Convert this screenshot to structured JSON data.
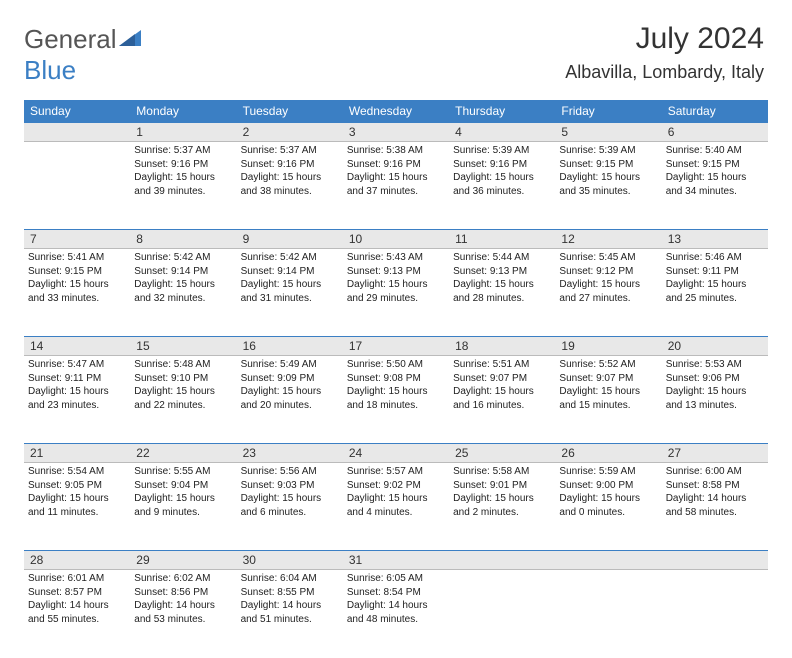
{
  "brand": {
    "part1": "General",
    "part2": "Blue"
  },
  "title": "July 2024",
  "subtitle": "Albavilla, Lombardy, Italy",
  "colors": {
    "header_bg": "#3b7fc4",
    "header_fg": "#ffffff",
    "daynum_bg": "#e8e8e8",
    "rule": "#3b7fc4",
    "text": "#222222"
  },
  "weekdays": [
    "Sunday",
    "Monday",
    "Tuesday",
    "Wednesday",
    "Thursday",
    "Friday",
    "Saturday"
  ],
  "weeks": [
    [
      null,
      {
        "n": "1",
        "sr": "Sunrise: 5:37 AM",
        "ss": "Sunset: 9:16 PM",
        "d1": "Daylight: 15 hours",
        "d2": "and 39 minutes."
      },
      {
        "n": "2",
        "sr": "Sunrise: 5:37 AM",
        "ss": "Sunset: 9:16 PM",
        "d1": "Daylight: 15 hours",
        "d2": "and 38 minutes."
      },
      {
        "n": "3",
        "sr": "Sunrise: 5:38 AM",
        "ss": "Sunset: 9:16 PM",
        "d1": "Daylight: 15 hours",
        "d2": "and 37 minutes."
      },
      {
        "n": "4",
        "sr": "Sunrise: 5:39 AM",
        "ss": "Sunset: 9:16 PM",
        "d1": "Daylight: 15 hours",
        "d2": "and 36 minutes."
      },
      {
        "n": "5",
        "sr": "Sunrise: 5:39 AM",
        "ss": "Sunset: 9:15 PM",
        "d1": "Daylight: 15 hours",
        "d2": "and 35 minutes."
      },
      {
        "n": "6",
        "sr": "Sunrise: 5:40 AM",
        "ss": "Sunset: 9:15 PM",
        "d1": "Daylight: 15 hours",
        "d2": "and 34 minutes."
      }
    ],
    [
      {
        "n": "7",
        "sr": "Sunrise: 5:41 AM",
        "ss": "Sunset: 9:15 PM",
        "d1": "Daylight: 15 hours",
        "d2": "and 33 minutes."
      },
      {
        "n": "8",
        "sr": "Sunrise: 5:42 AM",
        "ss": "Sunset: 9:14 PM",
        "d1": "Daylight: 15 hours",
        "d2": "and 32 minutes."
      },
      {
        "n": "9",
        "sr": "Sunrise: 5:42 AM",
        "ss": "Sunset: 9:14 PM",
        "d1": "Daylight: 15 hours",
        "d2": "and 31 minutes."
      },
      {
        "n": "10",
        "sr": "Sunrise: 5:43 AM",
        "ss": "Sunset: 9:13 PM",
        "d1": "Daylight: 15 hours",
        "d2": "and 29 minutes."
      },
      {
        "n": "11",
        "sr": "Sunrise: 5:44 AM",
        "ss": "Sunset: 9:13 PM",
        "d1": "Daylight: 15 hours",
        "d2": "and 28 minutes."
      },
      {
        "n": "12",
        "sr": "Sunrise: 5:45 AM",
        "ss": "Sunset: 9:12 PM",
        "d1": "Daylight: 15 hours",
        "d2": "and 27 minutes."
      },
      {
        "n": "13",
        "sr": "Sunrise: 5:46 AM",
        "ss": "Sunset: 9:11 PM",
        "d1": "Daylight: 15 hours",
        "d2": "and 25 minutes."
      }
    ],
    [
      {
        "n": "14",
        "sr": "Sunrise: 5:47 AM",
        "ss": "Sunset: 9:11 PM",
        "d1": "Daylight: 15 hours",
        "d2": "and 23 minutes."
      },
      {
        "n": "15",
        "sr": "Sunrise: 5:48 AM",
        "ss": "Sunset: 9:10 PM",
        "d1": "Daylight: 15 hours",
        "d2": "and 22 minutes."
      },
      {
        "n": "16",
        "sr": "Sunrise: 5:49 AM",
        "ss": "Sunset: 9:09 PM",
        "d1": "Daylight: 15 hours",
        "d2": "and 20 minutes."
      },
      {
        "n": "17",
        "sr": "Sunrise: 5:50 AM",
        "ss": "Sunset: 9:08 PM",
        "d1": "Daylight: 15 hours",
        "d2": "and 18 minutes."
      },
      {
        "n": "18",
        "sr": "Sunrise: 5:51 AM",
        "ss": "Sunset: 9:07 PM",
        "d1": "Daylight: 15 hours",
        "d2": "and 16 minutes."
      },
      {
        "n": "19",
        "sr": "Sunrise: 5:52 AM",
        "ss": "Sunset: 9:07 PM",
        "d1": "Daylight: 15 hours",
        "d2": "and 15 minutes."
      },
      {
        "n": "20",
        "sr": "Sunrise: 5:53 AM",
        "ss": "Sunset: 9:06 PM",
        "d1": "Daylight: 15 hours",
        "d2": "and 13 minutes."
      }
    ],
    [
      {
        "n": "21",
        "sr": "Sunrise: 5:54 AM",
        "ss": "Sunset: 9:05 PM",
        "d1": "Daylight: 15 hours",
        "d2": "and 11 minutes."
      },
      {
        "n": "22",
        "sr": "Sunrise: 5:55 AM",
        "ss": "Sunset: 9:04 PM",
        "d1": "Daylight: 15 hours",
        "d2": "and 9 minutes."
      },
      {
        "n": "23",
        "sr": "Sunrise: 5:56 AM",
        "ss": "Sunset: 9:03 PM",
        "d1": "Daylight: 15 hours",
        "d2": "and 6 minutes."
      },
      {
        "n": "24",
        "sr": "Sunrise: 5:57 AM",
        "ss": "Sunset: 9:02 PM",
        "d1": "Daylight: 15 hours",
        "d2": "and 4 minutes."
      },
      {
        "n": "25",
        "sr": "Sunrise: 5:58 AM",
        "ss": "Sunset: 9:01 PM",
        "d1": "Daylight: 15 hours",
        "d2": "and 2 minutes."
      },
      {
        "n": "26",
        "sr": "Sunrise: 5:59 AM",
        "ss": "Sunset: 9:00 PM",
        "d1": "Daylight: 15 hours",
        "d2": "and 0 minutes."
      },
      {
        "n": "27",
        "sr": "Sunrise: 6:00 AM",
        "ss": "Sunset: 8:58 PM",
        "d1": "Daylight: 14 hours",
        "d2": "and 58 minutes."
      }
    ],
    [
      {
        "n": "28",
        "sr": "Sunrise: 6:01 AM",
        "ss": "Sunset: 8:57 PM",
        "d1": "Daylight: 14 hours",
        "d2": "and 55 minutes."
      },
      {
        "n": "29",
        "sr": "Sunrise: 6:02 AM",
        "ss": "Sunset: 8:56 PM",
        "d1": "Daylight: 14 hours",
        "d2": "and 53 minutes."
      },
      {
        "n": "30",
        "sr": "Sunrise: 6:04 AM",
        "ss": "Sunset: 8:55 PM",
        "d1": "Daylight: 14 hours",
        "d2": "and 51 minutes."
      },
      {
        "n": "31",
        "sr": "Sunrise: 6:05 AM",
        "ss": "Sunset: 8:54 PM",
        "d1": "Daylight: 14 hours",
        "d2": "and 48 minutes."
      },
      null,
      null,
      null
    ]
  ]
}
